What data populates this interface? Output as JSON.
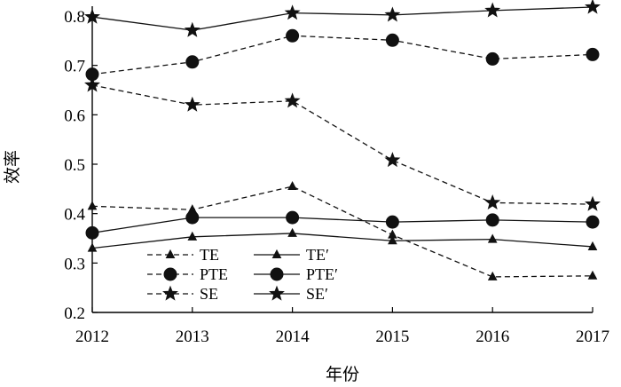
{
  "chart_data": {
    "type": "line",
    "title": "",
    "xlabel": "年份",
    "ylabel": "效率",
    "x": [
      "2012",
      "2013",
      "2014",
      "2015",
      "2016",
      "2017"
    ],
    "ylim": [
      0.2,
      0.8
    ],
    "yticks": [
      "0.2",
      "0.3",
      "0.4",
      "0.5",
      "0.6",
      "0.7",
      "0.8"
    ],
    "grid": false,
    "legend_position": "bottom-left",
    "series": [
      {
        "name": "TE",
        "marker": "triangle",
        "line": "dashed",
        "values": [
          0.415,
          0.408,
          0.455,
          0.357,
          0.272,
          0.274
        ]
      },
      {
        "name": "TE′",
        "marker": "triangle",
        "line": "solid",
        "values": [
          0.33,
          0.353,
          0.36,
          0.345,
          0.348,
          0.333
        ]
      },
      {
        "name": "PTE",
        "marker": "circle",
        "line": "dashed",
        "values": [
          0.682,
          0.707,
          0.76,
          0.751,
          0.713,
          0.722
        ]
      },
      {
        "name": "PTE′",
        "marker": "circle",
        "line": "solid",
        "values": [
          0.361,
          0.392,
          0.392,
          0.383,
          0.387,
          0.383
        ]
      },
      {
        "name": "SE",
        "marker": "star",
        "line": "dashed",
        "values": [
          0.66,
          0.62,
          0.628,
          0.508,
          0.422,
          0.419
        ]
      },
      {
        "name": "SE′",
        "marker": "star",
        "line": "solid",
        "values": [
          0.798,
          0.771,
          0.806,
          0.802,
          0.811,
          0.818
        ]
      }
    ]
  }
}
